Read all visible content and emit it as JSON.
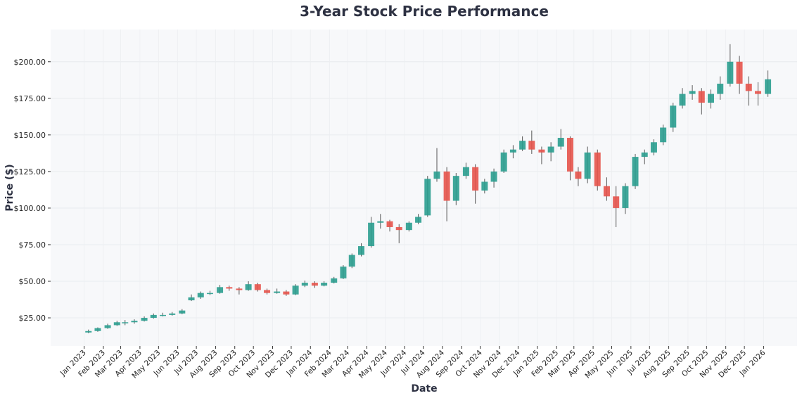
{
  "chart_data": {
    "type": "candlestick",
    "title": "3-Year Stock Price Performance",
    "xlabel": "Date",
    "ylabel": "Price ($)",
    "ylim": [
      5.8,
      222
    ],
    "xlim": [
      "2022-11-08",
      "2026-02-24"
    ],
    "grid": true,
    "y_ticks": [
      "$25.00",
      "$50.00",
      "$75.00",
      "$100.00",
      "$125.00",
      "$150.00",
      "$175.00",
      "$200.00"
    ],
    "y_tick_values": [
      25,
      50,
      75,
      100,
      125,
      150,
      175,
      200
    ],
    "x_ticks": [
      "Jan 2023",
      "Feb 2023",
      "Mar 2023",
      "Apr 2023",
      "May 2023",
      "Jun 2023",
      "Jul 2023",
      "Aug 2023",
      "Sep 2023",
      "Oct 2023",
      "Nov 2023",
      "Dec 2023",
      "Jan 2024",
      "Feb 2024",
      "Mar 2024",
      "Apr 2024",
      "May 2024",
      "Jun 2024",
      "Jul 2024",
      "Aug 2024",
      "Sep 2024",
      "Oct 2024",
      "Nov 2024",
      "Dec 2024",
      "Jan 2025",
      "Feb 2025",
      "Mar 2025",
      "Apr 2025",
      "May 2025",
      "Jun 2025",
      "Jul 2025",
      "Aug 2025",
      "Sep 2025",
      "Oct 2025",
      "Nov 2025",
      "Dec 2025",
      "Jan 2026"
    ],
    "x_tick_dates": [
      "2023-01-01",
      "2023-02-01",
      "2023-03-01",
      "2023-04-01",
      "2023-05-01",
      "2023-06-01",
      "2023-07-01",
      "2023-08-01",
      "2023-09-01",
      "2023-10-01",
      "2023-11-01",
      "2023-12-01",
      "2024-01-01",
      "2024-02-01",
      "2024-03-01",
      "2024-04-01",
      "2024-05-01",
      "2024-06-01",
      "2024-07-01",
      "2024-08-01",
      "2024-09-01",
      "2024-10-01",
      "2024-11-01",
      "2024-12-01",
      "2025-01-01",
      "2025-02-01",
      "2025-03-01",
      "2025-04-01",
      "2025-05-01",
      "2025-06-01",
      "2025-07-01",
      "2025-08-01",
      "2025-09-01",
      "2025-10-01",
      "2025-11-01",
      "2025-12-01",
      "2026-01-01"
    ],
    "colors": {
      "up": "#2a9d8f",
      "down": "#e5534b",
      "wick": "#555555",
      "plot_bg": "#f7f8fa",
      "title": "#2d3142"
    },
    "candles_fields": [
      "date",
      "open",
      "high",
      "low",
      "close"
    ],
    "candles": [
      [
        "2023-01-08",
        15,
        17,
        14.5,
        16
      ],
      [
        "2023-01-23",
        16,
        18.5,
        15.5,
        18
      ],
      [
        "2023-02-08",
        18,
        21,
        17.5,
        20
      ],
      [
        "2023-02-23",
        20,
        23,
        19.5,
        22
      ],
      [
        "2023-03-08",
        22,
        23.5,
        20,
        22
      ],
      [
        "2023-03-23",
        22,
        24,
        21,
        23
      ],
      [
        "2023-04-08",
        23,
        26,
        22.5,
        25
      ],
      [
        "2023-04-23",
        25,
        28,
        24.5,
        27
      ],
      [
        "2023-05-08",
        27,
        28.5,
        26,
        27
      ],
      [
        "2023-05-23",
        27,
        29,
        26.5,
        28
      ],
      [
        "2023-06-08",
        28,
        31,
        27.5,
        30
      ],
      [
        "2023-06-23",
        37,
        41,
        36.5,
        39
      ],
      [
        "2023-07-08",
        39,
        43,
        38,
        42
      ],
      [
        "2023-07-23",
        42,
        43.5,
        40.5,
        42
      ],
      [
        "2023-08-08",
        42,
        47.5,
        41.5,
        46
      ],
      [
        "2023-08-23",
        46,
        47,
        43.5,
        45
      ],
      [
        "2023-09-08",
        45,
        46,
        41,
        44
      ],
      [
        "2023-09-23",
        44,
        50,
        43.5,
        48
      ],
      [
        "2023-10-08",
        48,
        49,
        43,
        44
      ],
      [
        "2023-10-23",
        44,
        45,
        41,
        42
      ],
      [
        "2023-11-08",
        42,
        45,
        41.5,
        43
      ],
      [
        "2023-11-23",
        43,
        44,
        40,
        41
      ],
      [
        "2023-12-08",
        41,
        48,
        40.5,
        47
      ],
      [
        "2023-12-23",
        47,
        50.5,
        46,
        49
      ],
      [
        "2024-01-08",
        49,
        50,
        45.5,
        47
      ],
      [
        "2024-01-23",
        47,
        50,
        46.5,
        49
      ],
      [
        "2024-02-08",
        49,
        53,
        48.5,
        52
      ],
      [
        "2024-02-23",
        52,
        61,
        51.5,
        60
      ],
      [
        "2024-03-08",
        60,
        69,
        59,
        68
      ],
      [
        "2024-03-23",
        68,
        76,
        67,
        74
      ],
      [
        "2024-04-08",
        74,
        94,
        73,
        90
      ],
      [
        "2024-04-23",
        90,
        96,
        86,
        91
      ],
      [
        "2024-05-08",
        91,
        92,
        84,
        87
      ],
      [
        "2024-05-23",
        87,
        89,
        76,
        85
      ],
      [
        "2024-06-08",
        85,
        91,
        84,
        90
      ],
      [
        "2024-06-23",
        90,
        96,
        89,
        94
      ],
      [
        "2024-07-08",
        95,
        122,
        94,
        120
      ],
      [
        "2024-07-23",
        120,
        141,
        118,
        125
      ],
      [
        "2024-08-08",
        125,
        128,
        91,
        105
      ],
      [
        "2024-08-23",
        105,
        124,
        102,
        122
      ],
      [
        "2024-09-08",
        122,
        131,
        120,
        128
      ],
      [
        "2024-09-23",
        128,
        130,
        103,
        112
      ],
      [
        "2024-10-08",
        112,
        120,
        110,
        118
      ],
      [
        "2024-10-23",
        118,
        127,
        114,
        125
      ],
      [
        "2024-11-08",
        125,
        140,
        124,
        138
      ],
      [
        "2024-11-23",
        138,
        143,
        134,
        140
      ],
      [
        "2024-12-08",
        140,
        149,
        139,
        146
      ],
      [
        "2024-12-23",
        146,
        153,
        137,
        140
      ],
      [
        "2025-01-08",
        140,
        142,
        130,
        138
      ],
      [
        "2025-01-23",
        138,
        145,
        132,
        142
      ],
      [
        "2025-02-08",
        142,
        154,
        140,
        148
      ],
      [
        "2025-02-23",
        148,
        149,
        119,
        125
      ],
      [
        "2025-03-08",
        125,
        128,
        115,
        120
      ],
      [
        "2025-03-23",
        120,
        142,
        117,
        138
      ],
      [
        "2025-04-08",
        138,
        140,
        112,
        115
      ],
      [
        "2025-04-23",
        115,
        121,
        105,
        108
      ],
      [
        "2025-05-08",
        108,
        115,
        87,
        100
      ],
      [
        "2025-05-23",
        100,
        117,
        96,
        115
      ],
      [
        "2025-06-08",
        115,
        137,
        113,
        135
      ],
      [
        "2025-06-23",
        135,
        140,
        130,
        138
      ],
      [
        "2025-07-08",
        138,
        147,
        136,
        145
      ],
      [
        "2025-07-23",
        145,
        157,
        143,
        155
      ],
      [
        "2025-08-08",
        155,
        172,
        152,
        170
      ],
      [
        "2025-08-23",
        170,
        182,
        168,
        178
      ],
      [
        "2025-09-08",
        178,
        184,
        174,
        180
      ],
      [
        "2025-09-23",
        180,
        182,
        164,
        172
      ],
      [
        "2025-10-08",
        172,
        181,
        168,
        178
      ],
      [
        "2025-10-23",
        178,
        190,
        174,
        185
      ],
      [
        "2025-11-08",
        185,
        212,
        183,
        200
      ],
      [
        "2025-11-23",
        200,
        204,
        178,
        185
      ],
      [
        "2025-12-08",
        185,
        190,
        170,
        180
      ],
      [
        "2025-12-23",
        180,
        186,
        170,
        178
      ],
      [
        "2026-01-08",
        178,
        194,
        176,
        188
      ]
    ]
  }
}
